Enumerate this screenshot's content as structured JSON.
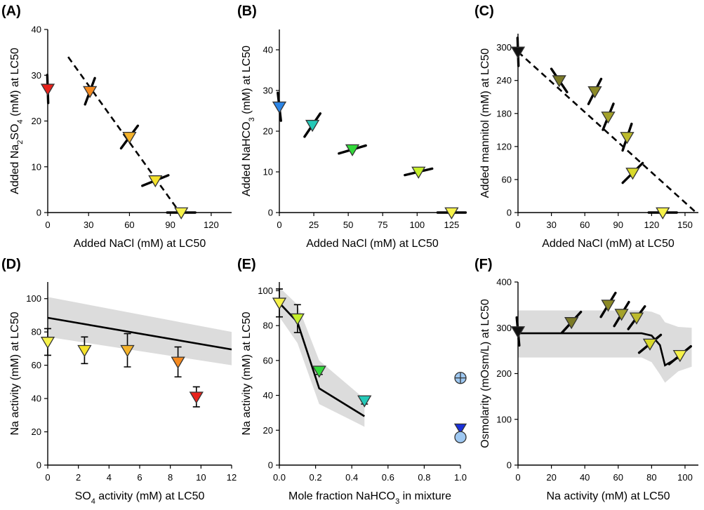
{
  "chart_data": [
    {
      "id": "A",
      "panel_label": "(A)",
      "type": "scatter",
      "xlabel": "Added NaCl (mM) at LC50",
      "ylabel": "Added Na2SO4 (mM) at LC50",
      "ylabel_parts": [
        "Added Na",
        "2",
        "SO",
        "4",
        " (mM) at LC50"
      ],
      "xlim": [
        0,
        135
      ],
      "ylim": [
        0,
        40
      ],
      "xticks": [
        0,
        30,
        60,
        90,
        120
      ],
      "yticks": [
        0,
        10,
        20,
        30,
        40
      ],
      "points": [
        {
          "x": 0,
          "y": 27,
          "color": "#e8221b",
          "slope": -9
        },
        {
          "x": 31,
          "y": 26.5,
          "color": "#f58a1f",
          "slope": 0.8
        },
        {
          "x": 60,
          "y": 16.5,
          "color": "#f5b32a",
          "slope": 0.4
        },
        {
          "x": 79,
          "y": 7,
          "color": "#f5e22a",
          "slope": 0.12
        },
        {
          "x": 98,
          "y": 0,
          "color": "#f6f24a",
          "slope": 0
        }
      ],
      "line": {
        "style": "dashed",
        "x": [
          15,
          97
        ],
        "y": [
          34,
          0
        ]
      }
    },
    {
      "id": "B",
      "panel_label": "(B)",
      "type": "scatter",
      "xlabel": "Added NaCl (mM) at LC50",
      "ylabel": "Added NaHCO3 (mM) at LC50",
      "ylabel_parts": [
        "Added NaHCO",
        "3",
        " (mM) at LC50"
      ],
      "xlim": [
        0,
        135
      ],
      "ylim": [
        0,
        45
      ],
      "xticks": [
        0,
        25,
        50,
        75,
        100,
        125
      ],
      "yticks": [
        0,
        10,
        20,
        30,
        40
      ],
      "points": [
        {
          "x": 0,
          "y": 26,
          "color": "#2b85e6",
          "slope": -3
        },
        {
          "x": 24,
          "y": 21.5,
          "color": "#25c9b8",
          "slope": 0.5
        },
        {
          "x": 53,
          "y": 15.5,
          "color": "#33d93b",
          "slope": 0.1
        },
        {
          "x": 101,
          "y": 10,
          "color": "#c6f02a",
          "slope": 0.08
        },
        {
          "x": 125,
          "y": 0,
          "color": "#f6f24a",
          "slope": 0
        }
      ]
    },
    {
      "id": "C",
      "panel_label": "(C)",
      "type": "scatter",
      "xlabel": "Added NaCl (mM) at LC50",
      "ylabel": "Added mannitol (mM) at LC50",
      "xlim": [
        0,
        162
      ],
      "ylim": [
        0,
        325
      ],
      "xticks": [
        0,
        30,
        60,
        90,
        120,
        150
      ],
      "yticks": [
        0,
        60,
        120,
        180,
        240,
        300
      ],
      "points": [
        {
          "x": 0,
          "y": 292,
          "color": "#111111",
          "slope": -60
        },
        {
          "x": 37,
          "y": 240,
          "color": "#7b7a26",
          "slope": -3
        },
        {
          "x": 69,
          "y": 220,
          "color": "#8c8a26",
          "slope": 4
        },
        {
          "x": 81,
          "y": 174,
          "color": "#a4a22a",
          "slope": 5
        },
        {
          "x": 98,
          "y": 137,
          "color": "#bdbb2c",
          "slope": 6
        },
        {
          "x": 103,
          "y": 72,
          "color": "#d9d92a",
          "slope": 2
        },
        {
          "x": 130,
          "y": 0,
          "color": "#f6f24a",
          "slope": 0
        }
      ],
      "line": {
        "style": "dashed",
        "x": [
          0,
          160
        ],
        "y": [
          292,
          0
        ]
      }
    },
    {
      "id": "D",
      "panel_label": "(D)",
      "type": "scatter",
      "xlabel": "SO4 activity (mM) at LC50",
      "xlabel_parts": [
        "SO",
        "4",
        " activity (mM) at LC50"
      ],
      "ylabel": "Na activity (mM) at LC50",
      "xlim": [
        0,
        12
      ],
      "ylim": [
        0,
        110
      ],
      "xticks": [
        0,
        2,
        4,
        6,
        8,
        10,
        12
      ],
      "yticks": [
        0,
        20,
        40,
        60,
        80,
        100
      ],
      "points": [
        {
          "x": 0,
          "y": 74,
          "color": "#f6f24a",
          "err": 8
        },
        {
          "x": 2.4,
          "y": 69,
          "color": "#f5e22a",
          "err": 8
        },
        {
          "x": 5.2,
          "y": 69,
          "color": "#f5b32a",
          "err": 10
        },
        {
          "x": 8.5,
          "y": 62,
          "color": "#f58a1f",
          "err": 9
        },
        {
          "x": 9.7,
          "y": 41,
          "color": "#e8221b",
          "err": 6
        }
      ],
      "line": {
        "x": [
          0,
          12
        ],
        "y": [
          88.5,
          69.5
        ]
      },
      "band": {
        "x": [
          0,
          12
        ],
        "upper": [
          101,
          80
        ],
        "lower": [
          77,
          60
        ]
      }
    },
    {
      "id": "E",
      "panel_label": "(E)",
      "type": "scatter",
      "xlabel": "Mole fraction NaHCO3 in mixture",
      "xlabel_parts": [
        "Mole fraction NaHCO",
        "3",
        " in mixture"
      ],
      "ylabel": "Na activity (mM) at LC50",
      "xlim": [
        0,
        1.0
      ],
      "ylim": [
        0,
        105
      ],
      "xticks": [
        0.0,
        0.2,
        0.4,
        0.6,
        0.8,
        1.0
      ],
      "yticks": [
        0,
        20,
        40,
        60,
        80,
        100
      ],
      "xticklabels": [
        "0.0",
        "0.2",
        "0.4",
        "0.6",
        "0.8",
        "1.0"
      ],
      "points": [
        {
          "x": 0.0,
          "y": 93,
          "color": "#f6f24a",
          "err": 8
        },
        {
          "x": 0.1,
          "y": 84,
          "color": "#c6f02a",
          "err": 8
        },
        {
          "x": 0.22,
          "y": 54,
          "color": "#33d93b",
          "err": 2
        },
        {
          "x": 0.47,
          "y": 37,
          "color": "#25c9b8",
          "err": 2
        }
      ],
      "line": {
        "x": [
          0.0,
          0.1,
          0.22,
          0.47
        ],
        "y": [
          93,
          82,
          44,
          28
        ]
      },
      "band": {
        "x": [
          0.0,
          0.1,
          0.22,
          0.47
        ],
        "upper": [
          102,
          92,
          60,
          38
        ],
        "lower": [
          85,
          70,
          35,
          22
        ]
      },
      "symbols_at_x1": [
        {
          "y": 50,
          "kind": "circle-plus",
          "color": "#9ec8f2"
        },
        {
          "y": 21,
          "kind": "triangle",
          "color": "#1a30d9"
        },
        {
          "y": 16,
          "kind": "circle",
          "color": "#9ec8f2"
        }
      ]
    },
    {
      "id": "F",
      "panel_label": "(F)",
      "type": "scatter",
      "xlabel": "Na activity (mM) at LC50",
      "ylabel": "Osmolarity (mOsm/L) at LC50",
      "xlim": [
        0,
        108
      ],
      "ylim": [
        0,
        400
      ],
      "xticks": [
        0,
        20,
        40,
        60,
        80,
        100
      ],
      "yticks": [
        0,
        100,
        200,
        300,
        400
      ],
      "points": [
        {
          "x": 0,
          "y": 292,
          "color": "#111111",
          "slope": -40
        },
        {
          "x": 32,
          "y": 312,
          "color": "#7b7a26",
          "slope": 4
        },
        {
          "x": 54,
          "y": 350,
          "color": "#8c8a26",
          "slope": 6
        },
        {
          "x": 62,
          "y": 330,
          "color": "#a4a22a",
          "slope": 6
        },
        {
          "x": 71,
          "y": 322,
          "color": "#bdbb2c",
          "slope": 5
        },
        {
          "x": 79,
          "y": 265,
          "color": "#d9d92a",
          "slope": 3
        },
        {
          "x": 97,
          "y": 240,
          "color": "#f6f24a",
          "slope": 3
        }
      ],
      "line": {
        "x": [
          0,
          74,
          80,
          85,
          88,
          96
        ],
        "y": [
          288,
          288,
          283,
          262,
          218,
          235
        ]
      },
      "band": {
        "x": [
          0,
          74,
          80,
          85,
          88,
          96,
          104
        ],
        "upper": [
          338,
          338,
          335,
          328,
          312,
          302,
          300
        ],
        "lower": [
          235,
          235,
          225,
          198,
          180,
          205,
          215
        ]
      }
    }
  ]
}
